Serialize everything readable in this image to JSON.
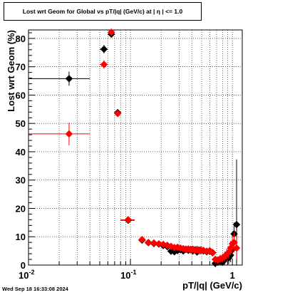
{
  "chart_data": {
    "type": "scatter",
    "title": "Lost wrt Geom for Global vs pT/|q| (GeV/c) at |  η | <= 1.0",
    "xlabel": "pT/|q| (GeV/c)",
    "ylabel": "Lost wrt Geom (%)",
    "x_scale": "log",
    "xlim": [
      0.01,
      1.25
    ],
    "ylim": [
      0,
      83
    ],
    "grid": true,
    "x_tick_labels": [
      "10^-2",
      "10^-1",
      "1"
    ],
    "x_ticks": [
      0.01,
      0.1,
      1
    ],
    "y_ticks": [
      0,
      10,
      20,
      30,
      40,
      50,
      60,
      70,
      80
    ],
    "series": [
      {
        "color": "#000000",
        "marker": "diamond",
        "points": [
          {
            "x": 0.025,
            "y": 65.8,
            "xerr": [
              0.01,
              0.04
            ],
            "yerr": 2.5
          },
          {
            "x": 0.055,
            "y": 76.2,
            "xerr": [
              0.05,
              0.06
            ],
            "yerr": 1.5
          },
          {
            "x": 0.065,
            "y": 81.5,
            "xerr": [
              0.06,
              0.07
            ],
            "yerr": 1.0
          },
          {
            "x": 0.075,
            "y": 53.8,
            "xerr": [
              0.07,
              0.08
            ],
            "yerr": 1.0
          },
          {
            "x": 0.095,
            "y": 15.8,
            "xerr": [
              0.08,
              0.11
            ],
            "yerr": 0.7
          },
          {
            "x": 0.13,
            "y": 8.8,
            "xerr": [
              0.12,
              0.14
            ],
            "yerr": 0.5
          },
          {
            "x": 0.15,
            "y": 7.9,
            "xerr": [
              0.14,
              0.16
            ],
            "yerr": 0.5
          },
          {
            "x": 0.17,
            "y": 7.6,
            "xerr": [
              0.16,
              0.18
            ],
            "yerr": 0.5
          },
          {
            "x": 0.19,
            "y": 7.4,
            "xerr": [
              0.18,
              0.2
            ],
            "yerr": 0.5
          },
          {
            "x": 0.21,
            "y": 6.9,
            "xerr": [
              0.2,
              0.22
            ],
            "yerr": 0.5
          },
          {
            "x": 0.23,
            "y": 6.5,
            "xerr": [
              0.22,
              0.24
            ],
            "yerr": 0.5
          },
          {
            "x": 0.25,
            "y": 4.9,
            "xerr": [
              0.24,
              0.26
            ],
            "yerr": 0.6
          },
          {
            "x": 0.27,
            "y": 4.7,
            "xerr": [
              0.26,
              0.28
            ],
            "yerr": 0.6
          },
          {
            "x": 0.29,
            "y": 5.1,
            "xerr": [
              0.28,
              0.3
            ],
            "yerr": 0.6
          },
          {
            "x": 0.31,
            "y": 5.4,
            "xerr": [
              0.3,
              0.32
            ],
            "yerr": 0.6
          },
          {
            "x": 0.33,
            "y": 5.0,
            "xerr": [
              0.32,
              0.34
            ],
            "yerr": 0.6
          },
          {
            "x": 0.35,
            "y": 5.6,
            "xerr": [
              0.34,
              0.36
            ],
            "yerr": 0.6
          },
          {
            "x": 0.37,
            "y": 5.2,
            "xerr": [
              0.36,
              0.38
            ],
            "yerr": 0.6
          },
          {
            "x": 0.39,
            "y": 5.5,
            "xerr": [
              0.38,
              0.4
            ],
            "yerr": 0.7
          },
          {
            "x": 0.41,
            "y": 5.0,
            "xerr": [
              0.4,
              0.42
            ],
            "yerr": 0.7
          },
          {
            "x": 0.43,
            "y": 5.4,
            "xerr": [
              0.42,
              0.44
            ],
            "yerr": 0.7
          },
          {
            "x": 0.45,
            "y": 4.6,
            "xerr": [
              0.44,
              0.46
            ],
            "yerr": 0.7
          },
          {
            "x": 0.47,
            "y": 5.3,
            "xerr": [
              0.46,
              0.48
            ],
            "yerr": 0.7
          },
          {
            "x": 0.49,
            "y": 5.1,
            "xerr": [
              0.48,
              0.5
            ],
            "yerr": 0.8
          },
          {
            "x": 0.52,
            "y": 5.0,
            "xerr": [
              0.5,
              0.54
            ],
            "yerr": 0.8
          },
          {
            "x": 0.56,
            "y": 4.7,
            "xerr": [
              0.54,
              0.58
            ],
            "yerr": 0.9
          },
          {
            "x": 0.6,
            "y": 4.9,
            "xerr": [
              0.58,
              0.62
            ],
            "yerr": 1.0
          },
          {
            "x": 0.64,
            "y": 4.4,
            "xerr": [
              0.62,
              0.66
            ],
            "yerr": 1.1
          },
          {
            "x": 0.68,
            "y": 0.6,
            "xerr": [
              0.66,
              0.7
            ],
            "yerr": 1.2
          },
          {
            "x": 0.72,
            "y": 1.0,
            "xerr": [
              0.7,
              0.74
            ],
            "yerr": 1.3
          },
          {
            "x": 0.76,
            "y": 1.3,
            "xerr": [
              0.74,
              0.78
            ],
            "yerr": 1.5
          },
          {
            "x": 0.8,
            "y": 1.0,
            "xerr": [
              0.78,
              0.82
            ],
            "yerr": 1.6
          },
          {
            "x": 0.84,
            "y": 2.0,
            "xerr": [
              0.82,
              0.86
            ],
            "yerr": 1.8
          },
          {
            "x": 0.88,
            "y": 3.0,
            "xerr": [
              0.86,
              0.9
            ],
            "yerr": 2.0
          },
          {
            "x": 0.92,
            "y": 2.5,
            "xerr": [
              0.9,
              0.94
            ],
            "yerr": 2.2
          },
          {
            "x": 0.96,
            "y": 3.5,
            "xerr": [
              0.94,
              0.98
            ],
            "yerr": 2.5
          },
          {
            "x": 1.0,
            "y": 5.5,
            "xerr": [
              0.98,
              1.02
            ],
            "yerr": 2.8
          },
          {
            "x": 1.04,
            "y": 11.0,
            "xerr": [
              1.02,
              1.06
            ],
            "yerr": 4.0
          },
          {
            "x": 1.1,
            "y": 14.3,
            "xerr": [
              1.06,
              1.14
            ],
            "yerr": 23.0
          }
        ]
      },
      {
        "color": "#ff0000",
        "marker": "diamond",
        "points": [
          {
            "x": 0.025,
            "y": 46.3,
            "xerr": [
              0.01,
              0.04
            ],
            "yerr": 4.0
          },
          {
            "x": 0.055,
            "y": 70.8,
            "xerr": [
              0.05,
              0.06
            ],
            "yerr": 1.5
          },
          {
            "x": 0.065,
            "y": 82.2,
            "xerr": [
              0.06,
              0.07
            ],
            "yerr": 1.0
          },
          {
            "x": 0.075,
            "y": 53.5,
            "xerr": [
              0.07,
              0.08
            ],
            "yerr": 1.0
          },
          {
            "x": 0.095,
            "y": 16.0,
            "xerr": [
              0.08,
              0.11
            ],
            "yerr": 0.7
          },
          {
            "x": 0.13,
            "y": 9.0,
            "xerr": [
              0.12,
              0.14
            ],
            "yerr": 0.5
          },
          {
            "x": 0.15,
            "y": 8.0,
            "xerr": [
              0.14,
              0.16
            ],
            "yerr": 0.5
          },
          {
            "x": 0.17,
            "y": 7.8,
            "xerr": [
              0.16,
              0.18
            ],
            "yerr": 0.5
          },
          {
            "x": 0.19,
            "y": 7.5,
            "xerr": [
              0.18,
              0.2
            ],
            "yerr": 0.5
          },
          {
            "x": 0.21,
            "y": 7.3,
            "xerr": [
              0.2,
              0.22
            ],
            "yerr": 0.5
          },
          {
            "x": 0.23,
            "y": 7.0,
            "xerr": [
              0.22,
              0.24
            ],
            "yerr": 0.5
          },
          {
            "x": 0.25,
            "y": 6.6,
            "xerr": [
              0.24,
              0.26
            ],
            "yerr": 0.6
          },
          {
            "x": 0.27,
            "y": 6.2,
            "xerr": [
              0.26,
              0.28
            ],
            "yerr": 0.6
          },
          {
            "x": 0.29,
            "y": 6.3,
            "xerr": [
              0.28,
              0.3
            ],
            "yerr": 0.6
          },
          {
            "x": 0.31,
            "y": 6.0,
            "xerr": [
              0.3,
              0.32
            ],
            "yerr": 0.6
          },
          {
            "x": 0.33,
            "y": 5.8,
            "xerr": [
              0.32,
              0.34
            ],
            "yerr": 0.6
          },
          {
            "x": 0.35,
            "y": 5.5,
            "xerr": [
              0.34,
              0.36
            ],
            "yerr": 0.6
          },
          {
            "x": 0.37,
            "y": 5.7,
            "xerr": [
              0.36,
              0.38
            ],
            "yerr": 0.6
          },
          {
            "x": 0.39,
            "y": 5.3,
            "xerr": [
              0.38,
              0.4
            ],
            "yerr": 0.7
          },
          {
            "x": 0.41,
            "y": 5.6,
            "xerr": [
              0.4,
              0.42
            ],
            "yerr": 0.7
          },
          {
            "x": 0.43,
            "y": 5.2,
            "xerr": [
              0.42,
              0.44
            ],
            "yerr": 0.7
          },
          {
            "x": 0.45,
            "y": 5.5,
            "xerr": [
              0.44,
              0.46
            ],
            "yerr": 0.7
          },
          {
            "x": 0.47,
            "y": 5.0,
            "xerr": [
              0.46,
              0.48
            ],
            "yerr": 0.7
          },
          {
            "x": 0.49,
            "y": 5.4,
            "xerr": [
              0.48,
              0.5
            ],
            "yerr": 0.8
          },
          {
            "x": 0.52,
            "y": 5.2,
            "xerr": [
              0.5,
              0.54
            ],
            "yerr": 0.8
          },
          {
            "x": 0.56,
            "y": 4.9,
            "xerr": [
              0.54,
              0.58
            ],
            "yerr": 0.9
          },
          {
            "x": 0.6,
            "y": 5.1,
            "xerr": [
              0.58,
              0.62
            ],
            "yerr": 1.0
          },
          {
            "x": 0.64,
            "y": 4.3,
            "xerr": [
              0.62,
              0.66
            ],
            "yerr": 1.1
          },
          {
            "x": 0.68,
            "y": 2.0,
            "xerr": [
              0.66,
              0.7
            ],
            "yerr": 1.2
          },
          {
            "x": 0.72,
            "y": 1.8,
            "xerr": [
              0.7,
              0.74
            ],
            "yerr": 1.3
          },
          {
            "x": 0.76,
            "y": 2.2,
            "xerr": [
              0.74,
              0.78
            ],
            "yerr": 1.5
          },
          {
            "x": 0.8,
            "y": 2.5,
            "xerr": [
              0.78,
              0.82
            ],
            "yerr": 1.6
          },
          {
            "x": 0.84,
            "y": 3.0,
            "xerr": [
              0.82,
              0.86
            ],
            "yerr": 1.8
          },
          {
            "x": 0.88,
            "y": 3.8,
            "xerr": [
              0.86,
              0.9
            ],
            "yerr": 2.0
          },
          {
            "x": 0.92,
            "y": 4.5,
            "xerr": [
              0.9,
              0.94
            ],
            "yerr": 2.2
          },
          {
            "x": 0.96,
            "y": 6.0,
            "xerr": [
              0.94,
              0.98
            ],
            "yerr": 2.5
          },
          {
            "x": 1.0,
            "y": 7.5,
            "xerr": [
              0.98,
              1.02
            ],
            "yerr": 2.8
          },
          {
            "x": 1.04,
            "y": 8.0,
            "xerr": [
              1.02,
              1.06
            ],
            "yerr": 3.5
          },
          {
            "x": 1.1,
            "y": 6.0,
            "xerr": [
              1.06,
              1.14
            ],
            "yerr": 4.0
          }
        ]
      }
    ]
  },
  "footer": {
    "timestamp": "Wed Sep 18 16:33:08 2024"
  }
}
